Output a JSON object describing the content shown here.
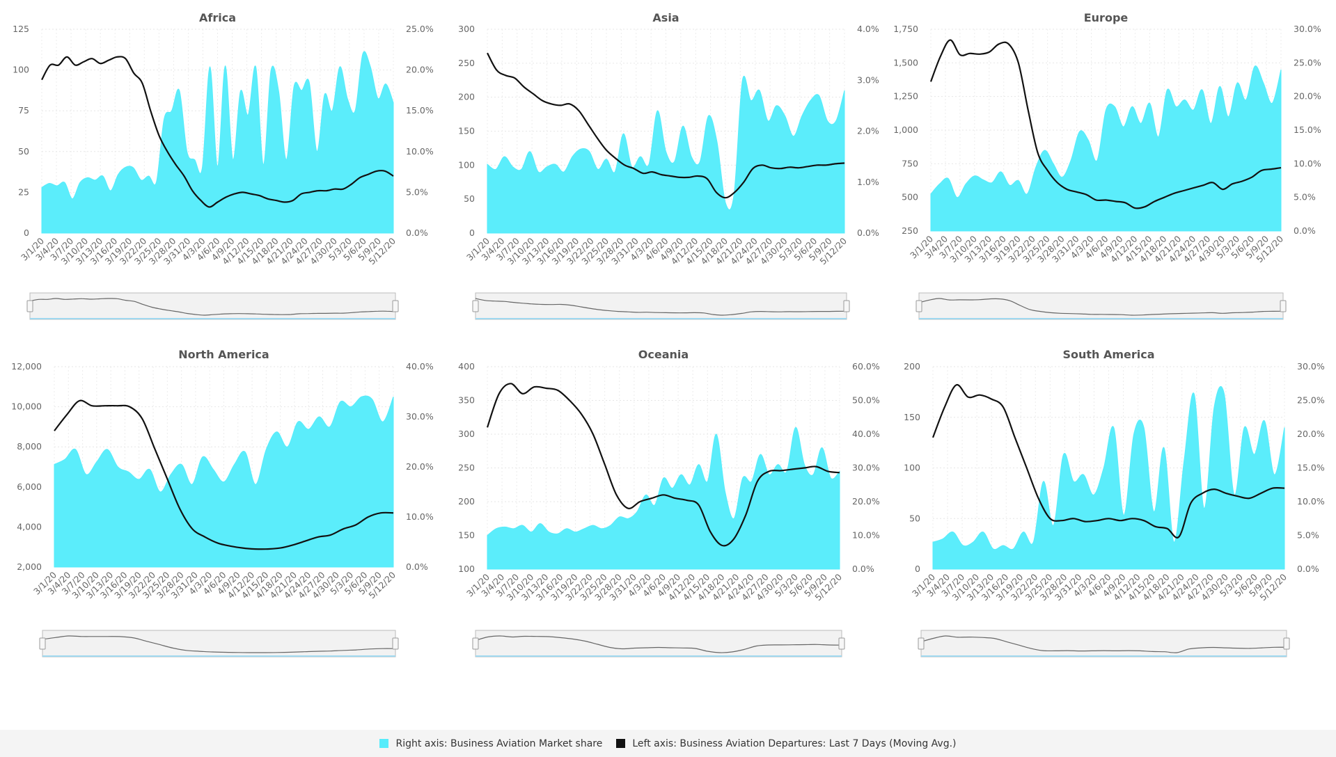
{
  "colors": {
    "area": "#56ecfb",
    "line": "#111111",
    "grid": "#dddddd",
    "text": "#666666",
    "title": "#555555"
  },
  "legend": {
    "area_label": "Right axis: Business Aviation Market share",
    "line_label": "Left axis: Business Aviation Departures: Last 7 Days (Moving Avg.)"
  },
  "chart_data": [
    {
      "type": "area+line",
      "title": "Africa",
      "x_labels": [
        "3/1/20",
        "3/4/20",
        "3/7/20",
        "3/10/20",
        "3/13/20",
        "3/16/20",
        "3/19/20",
        "3/22/20",
        "3/25/20",
        "3/28/20",
        "3/31/20",
        "4/3/20",
        "4/6/20",
        "4/9/20",
        "4/12/20",
        "4/15/20",
        "4/18/20",
        "4/21/20",
        "4/24/20",
        "4/27/20",
        "4/30/20",
        "5/3/20",
        "5/6/20",
        "5/9/20",
        "5/12/20"
      ],
      "left_axis": {
        "ticks": [
          "0",
          "25",
          "50",
          "75",
          "100",
          "125"
        ],
        "min": 0,
        "max": 125
      },
      "right_axis": {
        "ticks": [
          "0.0%",
          "5.0%",
          "10.0%",
          "15.0%",
          "20.0%",
          "25.0%"
        ],
        "min": 0,
        "max": 25
      },
      "series": [
        {
          "axis": "right",
          "style": "area",
          "values": [
            5.6,
            6.1,
            5.8,
            6.2,
            4.2,
            6.2,
            6.8,
            6.5,
            7.0,
            5.2,
            7.2,
            8.1,
            8.0,
            6.5,
            7.0,
            6.3,
            14.0,
            15.0,
            17.5,
            10.0,
            9.0,
            8.0,
            20.4,
            8.2,
            20.5,
            9.0,
            17.4,
            14.5,
            20.4,
            8.4,
            20.0,
            17.4,
            9.0,
            18.0,
            17.5,
            18.5,
            10.0,
            17.0,
            15.0,
            20.4,
            16.5,
            15.0,
            22.0,
            20.4,
            16.5,
            18.3,
            16.0
          ]
        },
        {
          "axis": "left",
          "style": "line",
          "values": [
            94,
            103,
            103,
            108,
            103,
            105,
            107,
            104,
            106,
            108,
            107,
            98,
            92,
            75,
            60,
            50,
            42,
            35,
            26,
            20,
            16,
            19,
            22,
            24,
            25,
            24,
            23,
            21,
            20,
            19,
            20,
            24,
            25,
            26,
            26,
            27,
            27,
            30,
            34,
            36,
            38,
            38,
            35
          ]
        }
      ]
    },
    {
      "type": "area+line",
      "title": "Asia",
      "x_labels": [
        "3/1/20",
        "3/4/20",
        "3/7/20",
        "3/10/20",
        "3/13/20",
        "3/16/20",
        "3/19/20",
        "3/22/20",
        "3/25/20",
        "3/28/20",
        "3/31/20",
        "4/3/20",
        "4/6/20",
        "4/9/20",
        "4/12/20",
        "4/15/20",
        "4/18/20",
        "4/21/20",
        "4/24/20",
        "4/27/20",
        "4/30/20",
        "5/3/20",
        "5/6/20",
        "5/9/20",
        "5/12/20"
      ],
      "left_axis": {
        "ticks": [
          "0",
          "50",
          "100",
          "150",
          "200",
          "250",
          "300"
        ],
        "min": 0,
        "max": 300
      },
      "right_axis": {
        "ticks": [
          "0.0%",
          "1.0%",
          "2.0%",
          "3.0%",
          "4.0%"
        ],
        "min": 0,
        "max": 4
      },
      "series": [
        {
          "axis": "right",
          "style": "area",
          "values": [
            1.35,
            1.25,
            1.5,
            1.3,
            1.25,
            1.6,
            1.2,
            1.3,
            1.35,
            1.2,
            1.5,
            1.65,
            1.6,
            1.25,
            1.45,
            1.2,
            1.95,
            1.3,
            1.5,
            1.35,
            2.4,
            1.6,
            1.4,
            2.1,
            1.5,
            1.4,
            2.3,
            1.8,
            0.6,
            0.75,
            3.0,
            2.6,
            2.8,
            2.2,
            2.5,
            2.3,
            1.9,
            2.3,
            2.6,
            2.7,
            2.2,
            2.2,
            2.8
          ]
        },
        {
          "axis": "left",
          "style": "line",
          "values": [
            265,
            240,
            232,
            228,
            215,
            205,
            195,
            190,
            188,
            190,
            180,
            160,
            140,
            122,
            110,
            100,
            95,
            88,
            90,
            86,
            84,
            82,
            82,
            84,
            80,
            60,
            52,
            60,
            75,
            95,
            100,
            96,
            95,
            97,
            96,
            98,
            100,
            100,
            102,
            103
          ]
        }
      ]
    },
    {
      "type": "area+line",
      "title": "Europe",
      "x_labels": [
        "3/1/20",
        "3/4/20",
        "3/7/20",
        "3/10/20",
        "3/13/20",
        "3/16/20",
        "3/19/20",
        "3/22/20",
        "3/25/20",
        "3/28/20",
        "3/31/20",
        "4/3/20",
        "4/6/20",
        "4/9/20",
        "4/12/20",
        "4/15/20",
        "4/18/20",
        "4/21/20",
        "4/24/20",
        "4/27/20",
        "4/30/20",
        "5/3/20",
        "5/6/20",
        "5/9/20",
        "5/12/20"
      ],
      "left_axis": {
        "ticks": [
          "250",
          "500",
          "750",
          "1,000",
          "1,250",
          "1,500",
          "1,750"
        ],
        "min": 250,
        "max": 1750
      },
      "right_axis": {
        "ticks": [
          "0.0%",
          "5.0%",
          "10.0%",
          "15.0%",
          "20.0%",
          "25.0%",
          "30.0%"
        ],
        "min": 0,
        "max": 30
      },
      "series": [
        {
          "axis": "right",
          "style": "area",
          "values": [
            5.5,
            7.0,
            7.8,
            5.0,
            7.0,
            8.2,
            7.6,
            7.2,
            8.8,
            6.8,
            7.5,
            5.5,
            9.5,
            12.0,
            10.0,
            8.0,
            10.5,
            14.8,
            13.5,
            10.5,
            18.0,
            18.5,
            15.5,
            18.5,
            16.0,
            19.0,
            14.0,
            21.0,
            18.5,
            19.5,
            18.0,
            21.0,
            16.0,
            21.5,
            17.0,
            22.0,
            19.5,
            24.5,
            22.0,
            19.0,
            24.0
          ]
        },
        {
          "axis": "left",
          "style": "line",
          "values": [
            1360,
            1550,
            1670,
            1560,
            1570,
            1565,
            1580,
            1640,
            1640,
            1500,
            1150,
            830,
            700,
            610,
            560,
            540,
            520,
            480,
            480,
            470,
            460,
            420,
            430,
            470,
            500,
            530,
            550,
            570,
            590,
            610,
            560,
            600,
            620,
            650,
            700,
            710,
            720
          ]
        }
      ]
    },
    {
      "type": "area+line",
      "title": "North America",
      "x_labels": [
        "3/1/20",
        "3/4/20",
        "3/7/20",
        "3/10/20",
        "3/13/20",
        "3/16/20",
        "3/19/20",
        "3/22/20",
        "3/25/20",
        "3/28/20",
        "3/31/20",
        "4/3/20",
        "4/6/20",
        "4/9/20",
        "4/12/20",
        "4/15/20",
        "4/18/20",
        "4/21/20",
        "4/24/20",
        "4/27/20",
        "4/30/20",
        "5/3/20",
        "5/6/20",
        "5/9/20",
        "5/12/20"
      ],
      "left_axis": {
        "ticks": [
          "2,000",
          "4,000",
          "6,000",
          "8,000",
          "10,000",
          "12,000"
        ],
        "min": 2000,
        "max": 12000
      },
      "right_axis": {
        "ticks": [
          "0.0%",
          "10.0%",
          "20.0%",
          "30.0%",
          "40.0%"
        ],
        "min": 0,
        "max": 40
      },
      "series": [
        {
          "axis": "right",
          "style": "area",
          "values": [
            20.5,
            21.5,
            23.5,
            18.5,
            21.0,
            23.5,
            20.0,
            19.0,
            17.5,
            19.5,
            15.0,
            18.5,
            20.5,
            16.5,
            22.0,
            19.5,
            17.0,
            20.5,
            23.0,
            16.5,
            23.5,
            27.0,
            24.0,
            29.0,
            27.5,
            30.0,
            28.0,
            33.0,
            32.0,
            34.0,
            33.5,
            29.0,
            34.0
          ]
        },
        {
          "axis": "left",
          "style": "line",
          "values": [
            8800,
            9600,
            10300,
            10050,
            10050,
            10050,
            10000,
            9400,
            7900,
            6400,
            4900,
            3900,
            3500,
            3200,
            3050,
            2950,
            2900,
            2900,
            2950,
            3100,
            3300,
            3500,
            3600,
            3900,
            4100,
            4500,
            4700,
            4700
          ]
        }
      ]
    },
    {
      "type": "area+line",
      "title": "Oceania",
      "x_labels": [
        "3/1/20",
        "3/4/20",
        "3/7/20",
        "3/10/20",
        "3/13/20",
        "3/16/20",
        "3/19/20",
        "3/22/20",
        "3/25/20",
        "3/28/20",
        "3/31/20",
        "4/3/20",
        "4/6/20",
        "4/9/20",
        "4/12/20",
        "4/15/20",
        "4/18/20",
        "4/21/20",
        "4/24/20",
        "4/27/20",
        "4/30/20",
        "5/3/20",
        "5/6/20",
        "5/9/20",
        "5/12/20"
      ],
      "left_axis": {
        "ticks": [
          "100",
          "150",
          "200",
          "250",
          "300",
          "350",
          "400"
        ],
        "min": 100,
        "max": 400
      },
      "right_axis": {
        "ticks": [
          "0.0%",
          "10.0%",
          "20.0%",
          "30.0%",
          "40.0%",
          "50.0%",
          "60.0%"
        ],
        "min": 0,
        "max": 60
      },
      "series": [
        {
          "axis": "right",
          "style": "area",
          "values": [
            10,
            12,
            12.5,
            12,
            13,
            11,
            13.5,
            11,
            10.5,
            12,
            11,
            12,
            13,
            12,
            13,
            15.5,
            15,
            17,
            22,
            19,
            27,
            24,
            28,
            25,
            31,
            26,
            40,
            23,
            15,
            27,
            26,
            34,
            28,
            31,
            29,
            42,
            31,
            28,
            36,
            27,
            29
          ]
        },
        {
          "axis": "left",
          "style": "line",
          "values": [
            310,
            360,
            375,
            360,
            370,
            368,
            365,
            350,
            330,
            300,
            255,
            210,
            190,
            200,
            205,
            210,
            205,
            202,
            195,
            155,
            135,
            145,
            180,
            230,
            245,
            246,
            248,
            250,
            252,
            245,
            243
          ]
        }
      ]
    },
    {
      "type": "area+line",
      "title": "South America",
      "x_labels": [
        "3/1/20",
        "3/4/20",
        "3/7/20",
        "3/10/20",
        "3/13/20",
        "3/16/20",
        "3/19/20",
        "3/22/20",
        "3/25/20",
        "3/28/20",
        "3/31/20",
        "4/3/20",
        "4/6/20",
        "4/9/20",
        "4/12/20",
        "4/15/20",
        "4/18/20",
        "4/21/20",
        "4/24/20",
        "4/27/20",
        "4/30/20",
        "5/3/20",
        "5/6/20",
        "5/9/20",
        "5/12/20"
      ],
      "left_axis": {
        "ticks": [
          "0",
          "50",
          "100",
          "150",
          "200"
        ],
        "min": 0,
        "max": 200
      },
      "right_axis": {
        "ticks": [
          "0.0%",
          "5.0%",
          "10.0%",
          "15.0%",
          "20.0%",
          "25.0%",
          "30.0%"
        ],
        "min": 0,
        "max": 30
      },
      "series": [
        {
          "axis": "right",
          "style": "area",
          "values": [
            4.0,
            4.5,
            5.5,
            3.5,
            4.0,
            5.5,
            3.0,
            3.5,
            3.0,
            5.5,
            4.0,
            13.0,
            6.5,
            17.0,
            13.0,
            14.0,
            11.0,
            15.0,
            21.0,
            8.0,
            20.0,
            21.0,
            8.5,
            18.0,
            4.0,
            16.0,
            26.0,
            9.0,
            24.0,
            26.0,
            11.0,
            21.0,
            17.0,
            22.0,
            14.0,
            21.0
          ]
        },
        {
          "axis": "left",
          "style": "line",
          "values": [
            130,
            160,
            182,
            170,
            172,
            168,
            160,
            130,
            100,
            70,
            50,
            48,
            50,
            47,
            48,
            50,
            48,
            50,
            48,
            42,
            40,
            32,
            65,
            75,
            79,
            75,
            72,
            70,
            75,
            80,
            80
          ]
        }
      ]
    }
  ]
}
